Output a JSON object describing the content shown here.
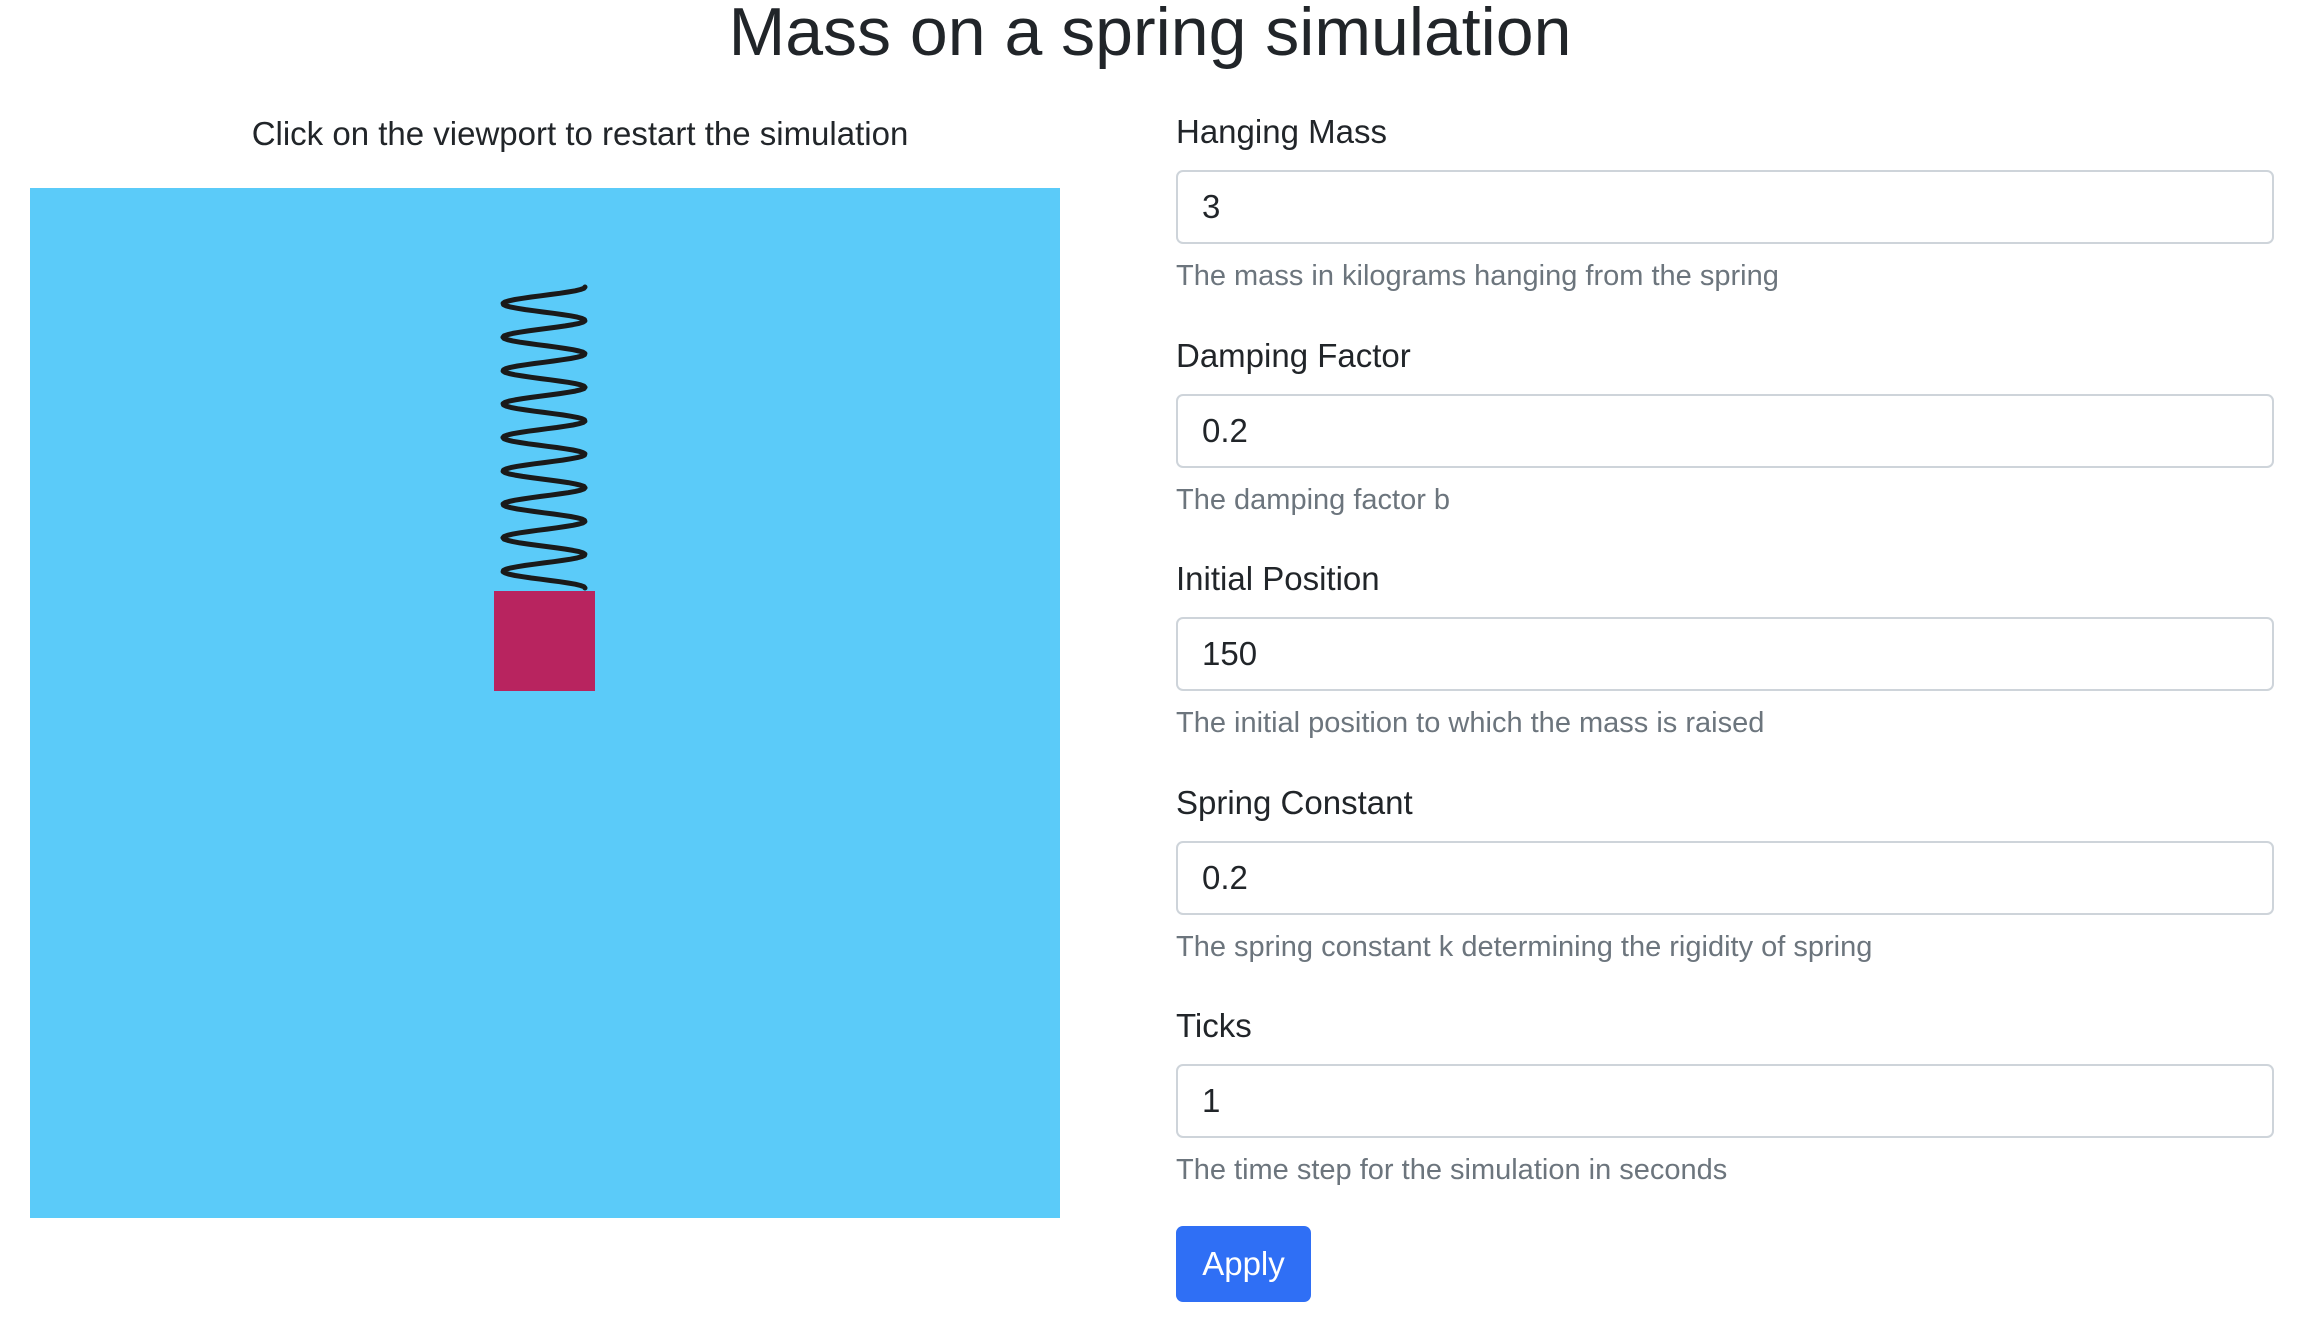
{
  "header": {
    "title": "Mass on a spring simulation"
  },
  "simulation": {
    "instructions": "Click on the viewport to restart the simulation",
    "background_color": "#5bcbf9",
    "mass_color": "#b8245f",
    "spring_color": "#1a1a1a"
  },
  "form": {
    "fields": [
      {
        "label": "Hanging Mass",
        "value": "3",
        "help": "The mass in kilograms hanging from the spring"
      },
      {
        "label": "Damping Factor",
        "value": "0.2",
        "help": "The damping factor b"
      },
      {
        "label": "Initial Position",
        "value": "150",
        "help": "The initial position to which the mass is raised"
      },
      {
        "label": "Spring Constant",
        "value": "0.2",
        "help": "The spring constant k determining the rigidity of spring"
      },
      {
        "label": "Ticks",
        "value": "1",
        "help": "The time step for the simulation in seconds"
      }
    ],
    "apply_label": "Apply",
    "accent_color": "#2f6ff5"
  }
}
